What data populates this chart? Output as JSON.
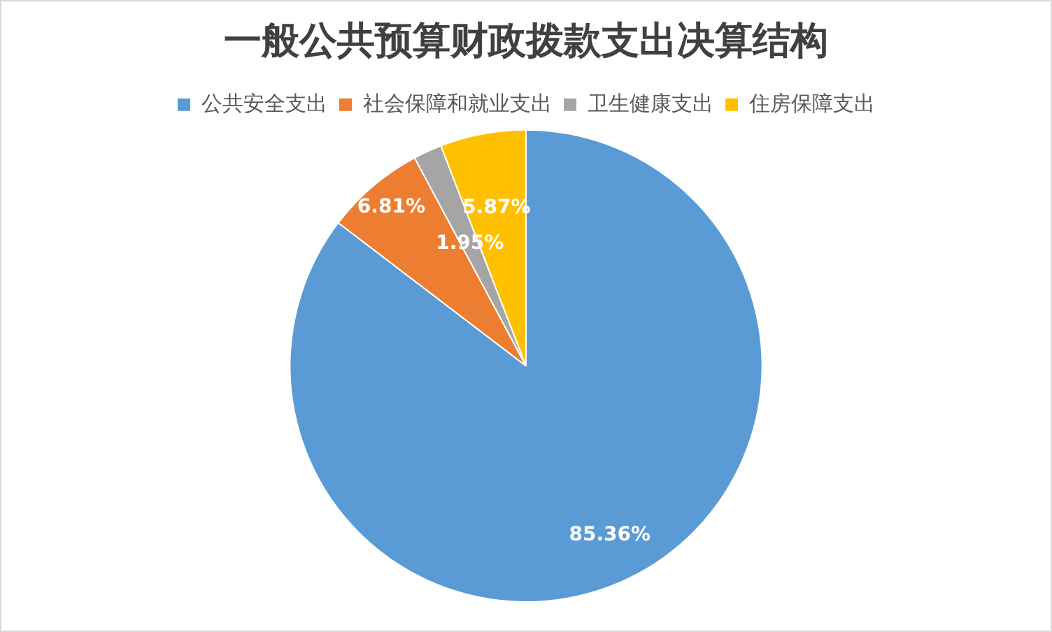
{
  "chart_data": {
    "type": "pie",
    "title": "一般公共预算财政拨款支出决算结构",
    "categories": [
      "公共安全支出",
      "社会保障和就业支出",
      "卫生健康支出",
      "住房保障支出"
    ],
    "values": [
      85.36,
      6.81,
      1.95,
      5.87
    ],
    "colors": [
      "#5b9bd5",
      "#ed7d31",
      "#a5a5a5",
      "#ffc000"
    ],
    "value_labels": [
      "85.36%",
      "6.81%",
      "1.95%",
      "5.87%"
    ],
    "legend": "top"
  }
}
